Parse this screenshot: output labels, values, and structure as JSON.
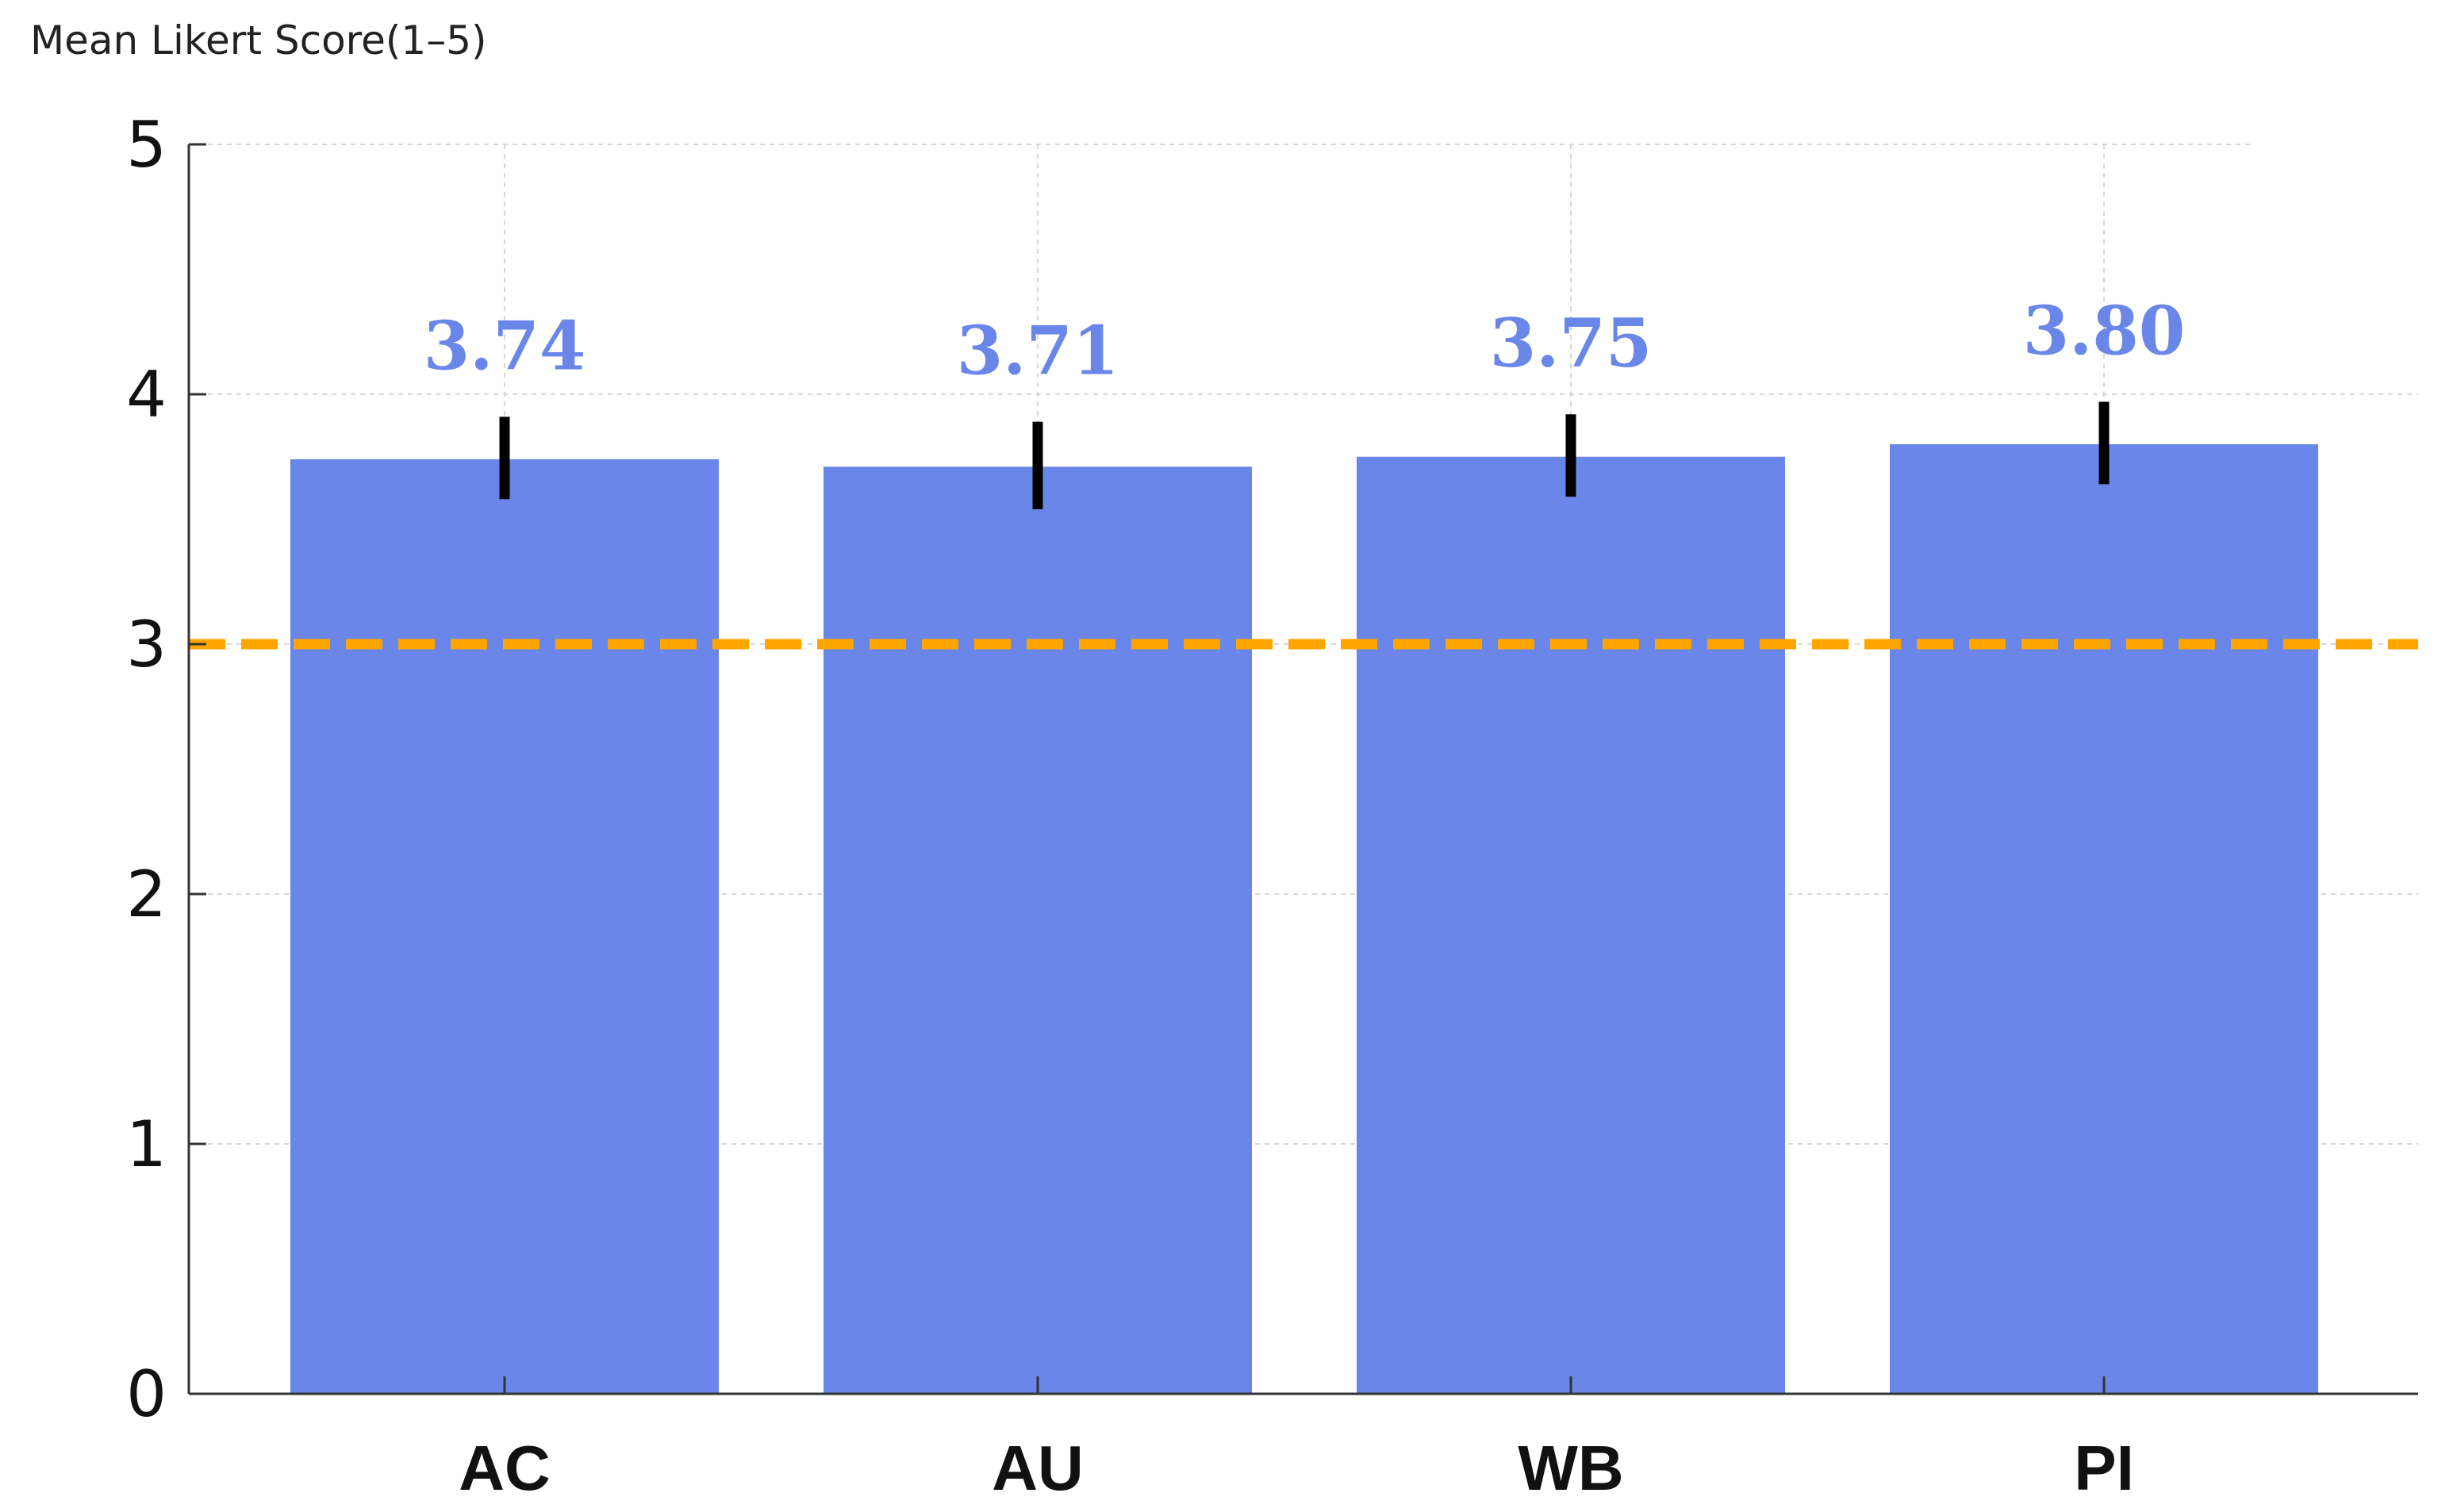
{
  "chart_data": {
    "type": "bar",
    "title": "",
    "ylabel": "Mean Likert Score(1–5)",
    "xlabel": "",
    "categories": [
      "AC",
      "AU",
      "WB",
      "PI"
    ],
    "values": [
      3.74,
      3.71,
      3.75,
      3.8
    ],
    "value_labels": [
      "3.74",
      "3.71",
      "3.75",
      "3.80"
    ],
    "error_low": [
      3.58,
      3.54,
      3.59,
      3.64
    ],
    "error_high": [
      3.91,
      3.89,
      3.92,
      3.97
    ],
    "ylim": [
      0,
      5
    ],
    "yticks": [
      "0",
      "1",
      "2",
      "3",
      "4",
      "5"
    ],
    "reference_line": {
      "y": 3,
      "style": "dashed"
    },
    "grid": true,
    "legend": "none",
    "colors": {
      "bar": "#6a86e8",
      "value_label": "#6a86e8",
      "error_bar": "#000000",
      "reference_line": "#ffa500"
    }
  }
}
